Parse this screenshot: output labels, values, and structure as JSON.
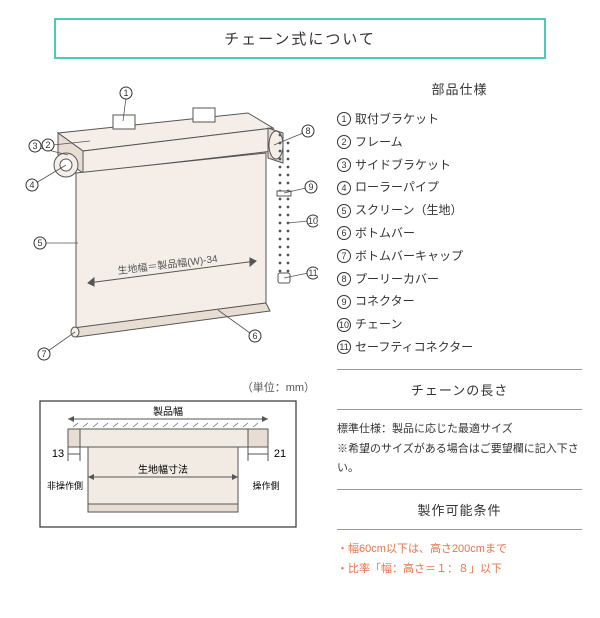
{
  "title": "チェーン式について",
  "sections": {
    "parts_spec": "部品仕様",
    "chain_length": "チェーンの長さ",
    "conditions": "製作可能条件"
  },
  "parts": [
    "取付ブラケット",
    "フレーム",
    "サイドブラケット",
    "ローラーパイプ",
    "スクリーン（生地）",
    "ボトムバー",
    "ボトムバーキャップ",
    "プーリーカバー",
    "コネクター",
    "チェーン",
    "セーフティコネクター"
  ],
  "chain_note": "標準仕様：製品に応じた最適サイズ\n※希望のサイズがある場合はご要望欄に記入下さい。",
  "conditions": [
    "・幅60cm以下は、高さ200cmまで",
    "・比率「幅：高さ＝１：８」以下"
  ],
  "unit_label": "（単位：mm）",
  "main_diagram": {
    "callouts": [
      1,
      2,
      3,
      4,
      5,
      6,
      7,
      8,
      9,
      10,
      11
    ],
    "fabric_width_label": "生地幅＝製品幅(W)-34",
    "stroke": "#555",
    "fill_light": "#f5eee8",
    "fill_mid": "#e8ddd2"
  },
  "sub_diagram": {
    "product_width": "製品幅",
    "fabric_width": "生地幅寸法",
    "left_margin": "13",
    "right_margin": "21",
    "left_label": "非操作側",
    "right_label": "操作側",
    "stroke": "#555",
    "fill": "#f2ebe3"
  }
}
